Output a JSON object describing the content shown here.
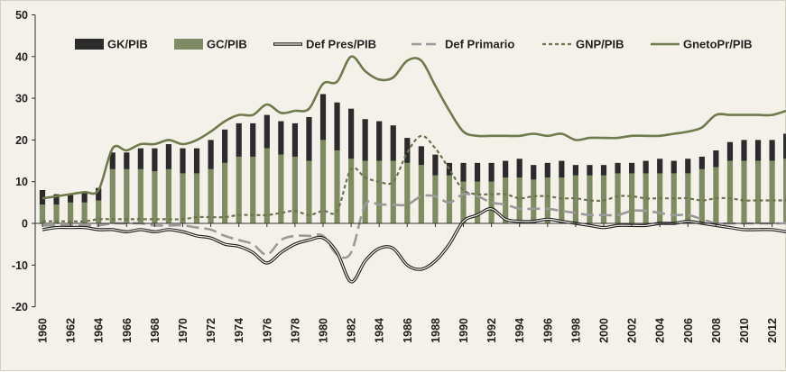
{
  "chart_data": {
    "type": "bar",
    "title": "",
    "xlabel": "",
    "ylabel": "",
    "ylim": [
      -20,
      50
    ],
    "yticks": [
      -20,
      -10,
      0,
      10,
      20,
      30,
      40,
      50
    ],
    "grid": false,
    "legend_position": "top",
    "colors": {
      "gk": "#2b2b2b",
      "gc": "#7f8b62",
      "def_pres": "#1e1e1e",
      "def_primario": "#9a9a9a",
      "gnp": "#6d7452",
      "gneto": "#6f7a4e",
      "axis": "#333333"
    },
    "x": [
      1960,
      1961,
      1962,
      1963,
      1964,
      1965,
      1966,
      1967,
      1968,
      1969,
      1970,
      1971,
      1972,
      1973,
      1974,
      1975,
      1976,
      1977,
      1978,
      1979,
      1980,
      1981,
      1982,
      1983,
      1984,
      1985,
      1986,
      1987,
      1988,
      1989,
      1990,
      1991,
      1992,
      1993,
      1994,
      1995,
      1996,
      1997,
      1998,
      1999,
      2000,
      2001,
      2002,
      2003,
      2004,
      2005,
      2006,
      2007,
      2008,
      2009,
      2010,
      2011,
      2012,
      2013
    ],
    "x_tick_labels": [
      "1960",
      "1962",
      "1964",
      "1966",
      "1968",
      "1970",
      "1972",
      "1974",
      "1976",
      "1978",
      "1980",
      "1982",
      "1984",
      "1986",
      "1988",
      "1990",
      "1992",
      "1994",
      "1996",
      "1998",
      "2000",
      "2002",
      "2004",
      "2006",
      "2008",
      "2010",
      "2012"
    ],
    "legend": [
      "GK/PIB",
      "GC/PIB",
      "Def  Pres/PIB",
      "Def Primario",
      "GNP/PIB",
      "GnetoPr/PIB"
    ],
    "series": [
      {
        "name": "GC/PIB",
        "kind": "stacked-bar",
        "values": [
          4.5,
          4.5,
          5,
          5,
          5.5,
          13,
          13,
          13,
          12.5,
          13,
          12,
          12,
          13,
          14.5,
          16,
          16,
          18,
          16.5,
          16,
          15,
          20,
          17.5,
          15.5,
          15,
          15,
          15,
          14.5,
          14,
          11.5,
          11.5,
          10,
          10,
          10,
          11,
          11,
          10.5,
          11,
          11,
          11.5,
          11.5,
          11.5,
          12,
          12,
          12,
          12,
          12,
          12,
          13,
          13.5,
          15,
          15,
          15,
          15,
          15.5
        ]
      },
      {
        "name": "GK/PIB",
        "kind": "stacked-bar",
        "values": [
          3.5,
          2.5,
          2,
          2.5,
          3,
          4,
          4,
          5,
          5.5,
          6,
          6,
          6,
          7,
          8,
          8,
          8,
          8,
          8,
          8,
          10.5,
          11,
          11.5,
          12,
          10,
          9.5,
          8.5,
          6,
          4.5,
          5,
          3,
          4.5,
          4.5,
          4.5,
          4,
          4.5,
          3.5,
          3.5,
          4,
          2.5,
          2.5,
          2.5,
          2.5,
          2.5,
          3,
          3.5,
          3,
          3.5,
          3,
          4,
          4.5,
          5,
          5,
          5,
          6
        ]
      },
      {
        "name": "Def  Pres/PIB",
        "kind": "line",
        "values": [
          -1.5,
          -1,
          -1,
          -1,
          -1.5,
          -1.5,
          -2,
          -1.5,
          -2,
          -1.5,
          -2,
          -3,
          -3.5,
          -5,
          -5.5,
          -7,
          -9.5,
          -7,
          -5,
          -4,
          -3.5,
          -7,
          -14,
          -9,
          -6,
          -6,
          -10,
          -11,
          -9,
          -5,
          0.5,
          2,
          3.5,
          1,
          0.5,
          0.5,
          1,
          0.5,
          0,
          -0.5,
          -1,
          -0.5,
          -0.5,
          -0.5,
          0,
          0,
          0.5,
          0,
          -0.5,
          -1,
          -1.5,
          -1.5,
          -1.5,
          -2
        ]
      },
      {
        "name": "Def Primario",
        "kind": "dashed-line",
        "values": [
          -0.5,
          -0.5,
          -0.5,
          -0.5,
          -0.5,
          0,
          0,
          0,
          -0.5,
          -0.5,
          -0.5,
          -1,
          -1.5,
          -3,
          -4,
          -5,
          -7.5,
          -4,
          -3,
          -3,
          -3,
          -7.5,
          -7,
          4.5,
          4.5,
          4.5,
          4.5,
          6.5,
          6.5,
          5,
          7,
          6.5,
          5,
          4.5,
          3.5,
          3.5,
          3.5,
          3,
          2.5,
          2,
          2,
          2,
          3,
          3,
          2.5,
          2,
          2,
          1,
          0,
          0,
          0,
          0,
          0,
          0
        ]
      },
      {
        "name": "GNP/PIB",
        "kind": "dotted-line",
        "values": [
          0.5,
          0.5,
          0.5,
          0.5,
          1,
          1,
          1,
          1,
          1,
          1,
          1,
          1.5,
          1.5,
          1.5,
          2,
          2,
          2,
          2.5,
          3,
          2,
          3,
          3,
          13,
          11,
          10,
          10,
          17,
          21,
          18,
          13,
          8,
          7,
          7,
          7,
          6,
          6.5,
          6.5,
          6,
          6,
          5.5,
          5.5,
          6.5,
          6.5,
          6,
          6,
          6,
          6,
          5.5,
          6,
          6,
          5.5,
          5.5,
          5.5,
          5.5
        ]
      },
      {
        "name": "GnetoPr/PIB",
        "kind": "line",
        "values": [
          6,
          6.5,
          7,
          7.5,
          8,
          18,
          17.5,
          19,
          19,
          20,
          19,
          20,
          22,
          24.5,
          26,
          26,
          28.5,
          26.5,
          27,
          27.5,
          33.5,
          34,
          40,
          36.5,
          34.5,
          35,
          39,
          39,
          33,
          27,
          22,
          21,
          21,
          21,
          21,
          21.5,
          21,
          21.5,
          20,
          20.5,
          20.5,
          20.5,
          21,
          21,
          21,
          21.5,
          22,
          23,
          26,
          26,
          26,
          26,
          26,
          27
        ]
      }
    ]
  }
}
